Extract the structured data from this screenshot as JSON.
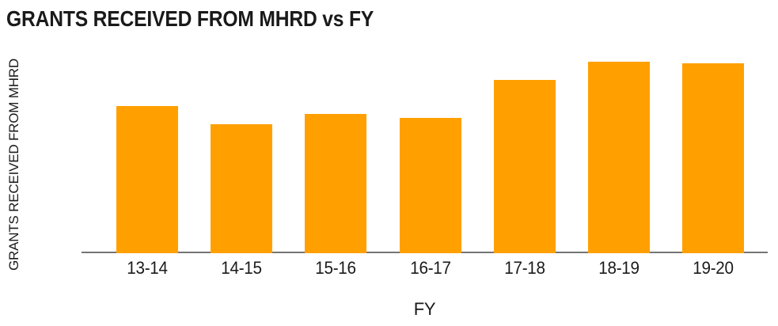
{
  "chart": {
    "title": "GRANTS RECEIVED FROM MHRD vs FY",
    "bar_color": "#FFA000",
    "axis_line_color": "#757575",
    "text_color": "#1a1a1a"
  },
  "chart_data": {
    "type": "bar",
    "title": "GRANTS RECEIVED FROM MHRD vs FY",
    "categories": [
      "13-14",
      "14-15",
      "15-16",
      "16-17",
      "17-18",
      "18-19",
      "19-20"
    ],
    "values": [
      445,
      390,
      420,
      409,
      523,
      578,
      574
    ],
    "xlabel": "FY",
    "ylabel": "GRANTS RECEIVED FROM MHRD",
    "ylim": [
      0,
      600
    ],
    "yticks": [
      0,
      200,
      400,
      600
    ],
    "grid": false,
    "legend": false,
    "background": "#ffffff"
  }
}
